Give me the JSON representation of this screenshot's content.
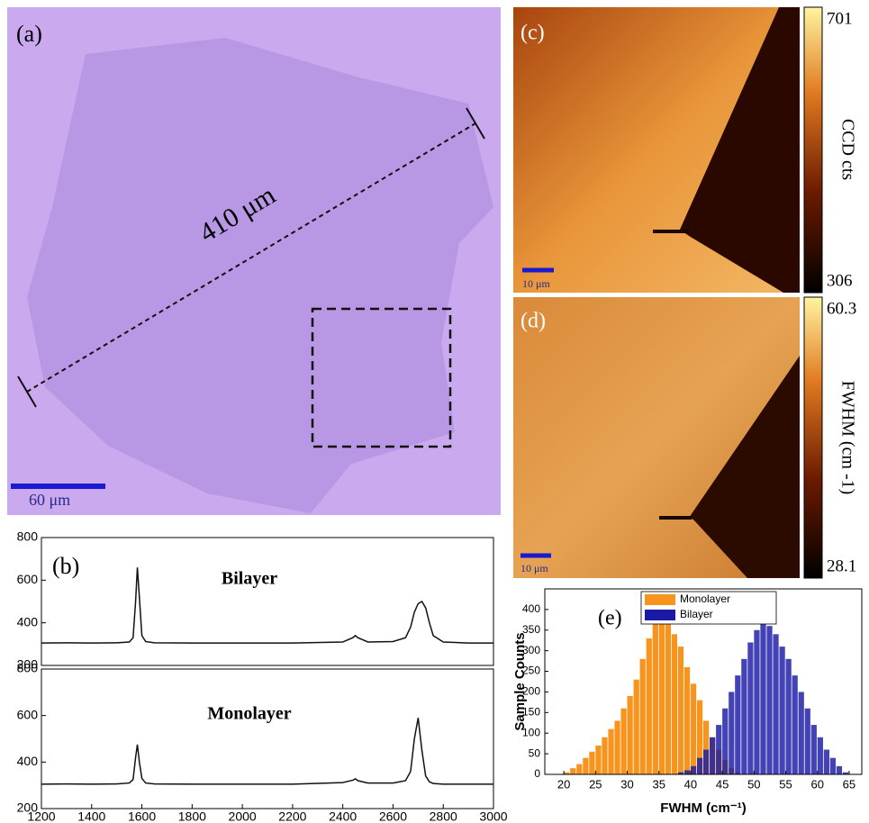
{
  "images": {
    "a": {
      "label": "(a)",
      "measurement": "410 μm",
      "scale_bar": "60 μm"
    },
    "c": {
      "label": "(c)",
      "scale_bar": "10 μm",
      "colorbar": {
        "label": "CCD cts",
        "range": [
          306,
          701
        ]
      }
    },
    "d": {
      "label": "(d)",
      "scale_bar": "10 μm",
      "colorbar": {
        "label": "FWHM (cm -1)",
        "range": [
          28.1,
          60.3
        ]
      }
    }
  },
  "chart_data": [
    {
      "type": "line",
      "panel": "(b)",
      "x": [
        1200,
        1300,
        1400,
        1500,
        1550,
        1565,
        1575,
        1582,
        1590,
        1600,
        1615,
        1650,
        1800,
        2000,
        2200,
        2400,
        2440,
        2450,
        2460,
        2500,
        2600,
        2650,
        2670,
        2685,
        2700,
        2715,
        2730,
        2745,
        2760,
        2800,
        2900,
        3000
      ],
      "series": [
        {
          "name": "Bilayer",
          "color": "#111111",
          "values": [
            305,
            306,
            305,
            306,
            310,
            330,
            500,
            660,
            520,
            340,
            312,
            306,
            305,
            305,
            305,
            310,
            330,
            340,
            330,
            310,
            312,
            330,
            380,
            450,
            490,
            500,
            470,
            400,
            340,
            310,
            305,
            305
          ]
        }
      ],
      "xlim": [
        1200,
        3000
      ],
      "ylim": [
        200,
        800
      ],
      "yticks": [
        200,
        400,
        600,
        800
      ]
    },
    {
      "type": "line",
      "x": [
        1200,
        1300,
        1400,
        1500,
        1550,
        1565,
        1575,
        1582,
        1590,
        1600,
        1615,
        1650,
        1800,
        2000,
        2200,
        2400,
        2440,
        2450,
        2460,
        2500,
        2600,
        2650,
        2670,
        2685,
        2700,
        2715,
        2730,
        2745,
        2760,
        2800,
        2900,
        3000
      ],
      "series": [
        {
          "name": "Monolayer",
          "color": "#111111",
          "values": [
            305,
            306,
            305,
            306,
            310,
            325,
            420,
            475,
            400,
            330,
            310,
            306,
            305,
            305,
            305,
            312,
            322,
            328,
            320,
            310,
            310,
            320,
            360,
            500,
            590,
            450,
            340,
            315,
            308,
            305,
            305,
            305
          ]
        }
      ],
      "xlim": [
        1200,
        3000
      ],
      "ylim": [
        200,
        800
      ],
      "yticks": [
        200,
        400,
        600,
        800
      ],
      "xticks": [
        1200,
        1400,
        1600,
        1800,
        2000,
        2200,
        2400,
        2600,
        2800,
        3000
      ]
    },
    {
      "type": "histogram",
      "panel": "(e)",
      "x_label": "FWHM (cm⁻¹)",
      "y_label": "Sample Counts",
      "bins": [
        20,
        21,
        22,
        23,
        24,
        25,
        26,
        27,
        28,
        29,
        30,
        31,
        32,
        33,
        34,
        35,
        36,
        37,
        38,
        39,
        40,
        41,
        42,
        43,
        44,
        45,
        46,
        47,
        48,
        49,
        50,
        51,
        52,
        53,
        54,
        55,
        56,
        57,
        58,
        59,
        60,
        61,
        62,
        63,
        64,
        65
      ],
      "series": [
        {
          "name": "Monolayer",
          "color": "#f7941d",
          "values": [
            5,
            15,
            25,
            40,
            55,
            70,
            90,
            110,
            130,
            160,
            190,
            230,
            280,
            330,
            420,
            380,
            400,
            340,
            310,
            260,
            220,
            180,
            130,
            90,
            60,
            35,
            15,
            5,
            0,
            0,
            0,
            0,
            0,
            0,
            0,
            0,
            0,
            0,
            0,
            0,
            0,
            0,
            0,
            0,
            0
          ]
        },
        {
          "name": "Bilayer",
          "color": "#1a1aa6",
          "values": [
            0,
            0,
            0,
            0,
            0,
            0,
            0,
            0,
            0,
            0,
            0,
            0,
            0,
            0,
            0,
            0,
            0,
            0,
            5,
            10,
            20,
            40,
            60,
            90,
            120,
            160,
            200,
            240,
            280,
            320,
            350,
            365,
            360,
            340,
            310,
            280,
            240,
            200,
            160,
            120,
            90,
            60,
            40,
            20,
            5
          ]
        }
      ],
      "xlim": [
        17,
        67
      ],
      "xticks": [
        20,
        25,
        30,
        35,
        40,
        45,
        50,
        55,
        60,
        65
      ],
      "ylim": [
        0,
        450
      ],
      "yticks": [
        0,
        50,
        100,
        150,
        200,
        250,
        300,
        350,
        400
      ]
    }
  ]
}
